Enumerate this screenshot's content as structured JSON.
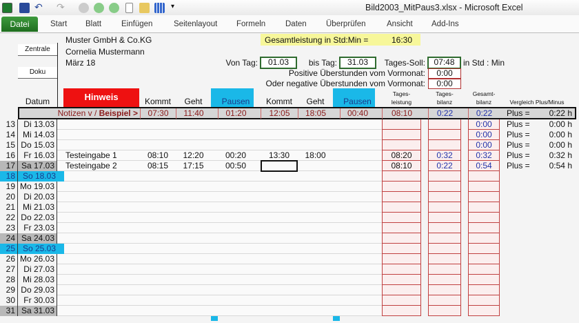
{
  "window": {
    "title": "Bild2003_MitPaus3.xlsx  -  Microsoft Excel"
  },
  "quick_access": [
    "excel-logo-icon",
    "save-icon",
    "undo-icon",
    "redo-icon",
    "circle-grey-icon",
    "circle-green-icon",
    "circle-green-icon",
    "new-doc-icon",
    "open-folder-icon",
    "table-icon",
    "customize-icon"
  ],
  "ribbon": {
    "tabs": [
      "Datei",
      "Start",
      "Blatt",
      "Einfügen",
      "Seitenlayout",
      "Formeln",
      "Daten",
      "Überprüfen",
      "Ansicht",
      "Add-Ins"
    ]
  },
  "sheet": {
    "company": "Muster GmbH & Co.KG",
    "person": "Cornelia Mustermann",
    "month": "März 18",
    "buttons": {
      "zentrale": "Zentrale",
      "doku": "Doku"
    },
    "total_label": "Gesamtleistung in Std:Min =",
    "total_value": "16:30",
    "von_label": "Von Tag:",
    "von_value": "01.03",
    "bis_label": "bis Tag:",
    "bis_value": "31.03",
    "soll_label": "Tages-Soll:",
    "soll_value": "07:48",
    "soll_unit": "in Std : Min",
    "pos_label": "Positive Überstunden vom Vormonat:",
    "pos_value": "0:00",
    "neg_label": "Oder negative Überstunden vom Vormonat:",
    "neg_value": "0:00",
    "headers": {
      "datum": "Datum",
      "hinweis": "Hinweis",
      "kommt": "Kommt",
      "geht": "Geht",
      "pausen": "Pausen",
      "kommt2": "Kommt",
      "geht2": "Geht",
      "pausen2": "Pausen",
      "tl1": "Tages-",
      "tl2": "leistung",
      "tb1": "Tages-",
      "tb2": "bilanz",
      "gb1": "Gesamt-",
      "gb2": "bilanz",
      "vergleich": "Vergleich Plus/Minus"
    },
    "example": {
      "label": "Notizen v / ",
      "label_bold": "Beispiel >",
      "kommt": "07:30",
      "geht": "11:40",
      "pausen": "01:20",
      "kommt2": "12:05",
      "geht2": "18:05",
      "pausen2": "00:40",
      "leistung": "08:10",
      "tagesbilanz": "0:22",
      "gesamtbilanz": "0:22",
      "plus": "Plus =",
      "vergleich": "0:22  h"
    },
    "colors": {
      "weekend_sat": "#b8b8b8",
      "weekend_sun": "#1ab8e8",
      "hinweis": "#ee1111",
      "pause_col": "#1ab8e8",
      "total_bg": "#f7f79a"
    },
    "rows": [
      {
        "n": "13",
        "d": "Di 13.03",
        "w": "",
        "note": "",
        "k": "",
        "g": "",
        "p": "",
        "k2": "",
        "g2": "",
        "p2": "",
        "tl": "",
        "tb": "",
        "gb": "0:00",
        "pl": "Plus =",
        "v": "0:00  h"
      },
      {
        "n": "14",
        "d": "Mi 14.03",
        "w": "",
        "note": "",
        "k": "",
        "g": "",
        "p": "",
        "k2": "",
        "g2": "",
        "p2": "",
        "tl": "",
        "tb": "",
        "gb": "0:00",
        "pl": "Plus =",
        "v": "0:00  h"
      },
      {
        "n": "15",
        "d": "Do 15.03",
        "w": "",
        "note": "",
        "k": "",
        "g": "",
        "p": "",
        "k2": "",
        "g2": "",
        "p2": "",
        "tl": "",
        "tb": "",
        "gb": "0:00",
        "pl": "Plus =",
        "v": "0:00  h"
      },
      {
        "n": "16",
        "d": "Fr 16.03",
        "w": "",
        "note": "Testeingabe 1",
        "k": "08:10",
        "g": "12:20",
        "p": "00:20",
        "k2": "13:30",
        "g2": "18:00",
        "p2": "",
        "tl": "08:20",
        "tb": "0:32",
        "gb": "0:32",
        "pl": "Plus =",
        "v": "0:32  h"
      },
      {
        "n": "17",
        "d": "Sa 17.03",
        "w": "sat",
        "note": "Testeingabe 2",
        "k": "08:15",
        "g": "17:15",
        "p": "00:50",
        "k2": "",
        "g2": "",
        "p2": "",
        "tl": "08:10",
        "tb": "0:22",
        "gb": "0:54",
        "pl": "Plus =",
        "v": "0:54  h"
      },
      {
        "n": "18",
        "d": "So 18.03",
        "w": "sun"
      },
      {
        "n": "19",
        "d": "Mo 19.03",
        "w": ""
      },
      {
        "n": "20",
        "d": "Di 20.03",
        "w": ""
      },
      {
        "n": "21",
        "d": "Mi 21.03",
        "w": ""
      },
      {
        "n": "22",
        "d": "Do 22.03",
        "w": ""
      },
      {
        "n": "23",
        "d": "Fr 23.03",
        "w": ""
      },
      {
        "n": "24",
        "d": "Sa 24.03",
        "w": "sat"
      },
      {
        "n": "25",
        "d": "So 25.03",
        "w": "sun"
      },
      {
        "n": "26",
        "d": "Mo 26.03",
        "w": ""
      },
      {
        "n": "27",
        "d": "Di 27.03",
        "w": ""
      },
      {
        "n": "28",
        "d": "Mi 28.03",
        "w": ""
      },
      {
        "n": "29",
        "d": "Do 29.03",
        "w": ""
      },
      {
        "n": "30",
        "d": "Fr 30.03",
        "w": ""
      },
      {
        "n": "31",
        "d": "Sa 31.03",
        "w": "sat"
      }
    ]
  }
}
